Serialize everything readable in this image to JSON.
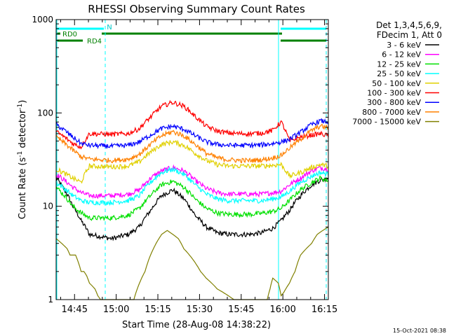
{
  "chart_data": {
    "type": "line",
    "title": "RHESSI Observing Summary Count Rates",
    "xlabel": "Start Time (28-Aug-08 14:38:22)",
    "ylabel_main": "Count Rate (s",
    "ylabel_sup1": "-1",
    "ylabel_mid": " detector",
    "ylabel_sup2": "-1",
    "ylabel_end": ")",
    "yscale": "log",
    "ylim": [
      1,
      1000
    ],
    "xlim_minutes": [
      0,
      98
    ],
    "x_unit": "minutes since 14:38:22",
    "x_ticks": [
      {
        "label": "14:45",
        "value": 6.63
      },
      {
        "label": "15:00",
        "value": 21.63
      },
      {
        "label": "15:15",
        "value": 36.63
      },
      {
        "label": "15:30",
        "value": 51.63
      },
      {
        "label": "15:45",
        "value": 66.63
      },
      {
        "label": "16:00",
        "value": 81.63
      },
      {
        "label": "16:15",
        "value": 96.63
      }
    ],
    "y_ticks": [
      {
        "label": "1",
        "value": 1
      },
      {
        "label": "10",
        "value": 10
      },
      {
        "label": "100",
        "value": 100
      },
      {
        "label": "1000",
        "value": 1000
      }
    ],
    "legend_header": [
      "Det 1,3,4,5,6,9,",
      "FDecim 1, Att 0"
    ],
    "legend_position": "right",
    "series": [
      {
        "name": "3 - 6 keV",
        "color": "#000000",
        "x": [
          0,
          6,
          9,
          12,
          20,
          26,
          30,
          34,
          38,
          42,
          46,
          50,
          54,
          58,
          62,
          66,
          70,
          74,
          78,
          81,
          84,
          88,
          92,
          95,
          98
        ],
        "y": [
          20,
          10,
          7,
          5,
          4.5,
          5,
          6,
          9,
          13,
          15,
          12,
          8,
          6,
          5.2,
          5,
          5,
          5,
          5.2,
          5.8,
          7,
          9,
          13,
          17,
          19,
          20
        ]
      },
      {
        "name": "6 - 12 keV",
        "color": "#ff00ff",
        "x": [
          0,
          6,
          9,
          12,
          20,
          26,
          30,
          34,
          38,
          42,
          46,
          50,
          54,
          58,
          62,
          66,
          70,
          74,
          78,
          81,
          84,
          88,
          92,
          95,
          98
        ],
        "y": [
          22,
          16,
          14,
          13,
          13,
          13.5,
          15,
          20,
          24,
          26,
          24,
          19,
          15.5,
          14,
          13.5,
          13.5,
          13.5,
          13.5,
          14,
          14.5,
          17,
          20,
          24,
          26,
          25
        ]
      },
      {
        "name": "12 - 25 keV",
        "color": "#00e000",
        "x": [
          0,
          6,
          9,
          12,
          20,
          26,
          30,
          34,
          38,
          42,
          46,
          50,
          54,
          58,
          62,
          66,
          70,
          74,
          78,
          81,
          84,
          88,
          92,
          95,
          98
        ],
        "y": [
          16,
          10,
          8.5,
          7.5,
          7.5,
          8,
          9.5,
          13,
          17,
          18.5,
          16,
          12,
          9.5,
          8.5,
          8.2,
          8.2,
          8.2,
          8.4,
          8.8,
          9.5,
          11.5,
          15,
          18,
          20,
          19
        ]
      },
      {
        "name": "25 - 50 keV",
        "color": "#00ffff",
        "x": [
          0,
          6,
          9,
          12,
          20,
          26,
          30,
          34,
          38,
          42,
          46,
          50,
          54,
          58,
          62,
          66,
          70,
          74,
          78,
          81,
          84,
          88,
          92,
          95,
          98
        ],
        "y": [
          18,
          13,
          11.5,
          11,
          11,
          11.5,
          13,
          18,
          23,
          25,
          22,
          17,
          13.5,
          12,
          11.5,
          11.5,
          11.5,
          11.5,
          12,
          12.5,
          14.5,
          18,
          21,
          23,
          22
        ]
      },
      {
        "name": "50 - 100 keV",
        "color": "#e0d000",
        "x": [
          0,
          6,
          9,
          12,
          20,
          26,
          30,
          34,
          38,
          42,
          46,
          50,
          54,
          58,
          62,
          66,
          70,
          74,
          78,
          81,
          84,
          88,
          92,
          95,
          98
        ],
        "y": [
          25,
          20,
          18,
          27,
          26.5,
          27,
          30,
          38,
          46,
          49,
          45,
          37,
          31,
          28,
          27,
          27,
          27,
          27,
          27.5,
          28,
          21,
          23,
          26,
          28,
          27
        ]
      },
      {
        "name": "100 - 300 keV",
        "color": "#ff0000",
        "x": [
          0,
          6,
          9,
          12,
          20,
          26,
          30,
          34,
          38,
          42,
          46,
          50,
          54,
          58,
          62,
          66,
          70,
          74,
          78,
          81,
          84,
          88,
          92,
          95,
          98
        ],
        "y": [
          63,
          47,
          43,
          60,
          59,
          60,
          68,
          90,
          118,
          130,
          118,
          92,
          72,
          64,
          61,
          60,
          60,
          61,
          65,
          80,
          50,
          55,
          58,
          60,
          57
        ]
      },
      {
        "name": "300 - 800 keV",
        "color": "#0000ff",
        "x": [
          0,
          6,
          9,
          12,
          20,
          26,
          30,
          34,
          38,
          42,
          46,
          50,
          54,
          58,
          62,
          66,
          70,
          74,
          78,
          81,
          84,
          88,
          92,
          95,
          98
        ],
        "y": [
          75,
          55,
          47,
          45,
          44,
          45,
          49,
          58,
          68,
          72,
          67,
          57,
          49,
          46,
          45,
          45,
          45,
          45.5,
          47,
          49,
          52,
          62,
          75,
          82,
          80
        ]
      },
      {
        "name": "800 - 7000 keV",
        "color": "#ff8000",
        "x": [
          0,
          6,
          9,
          12,
          20,
          26,
          30,
          34,
          38,
          42,
          46,
          50,
          54,
          58,
          62,
          66,
          70,
          74,
          78,
          81,
          84,
          88,
          92,
          95,
          98
        ],
        "y": [
          55,
          40,
          34,
          32,
          31,
          32,
          36,
          46,
          57,
          63,
          57,
          46,
          37,
          33,
          31.5,
          31,
          31,
          31.5,
          33,
          35,
          42,
          52,
          65,
          72,
          70
        ]
      },
      {
        "name": "7000 - 15000 keV",
        "color": "#808000",
        "x": [
          0,
          2,
          4,
          5,
          7,
          8,
          9,
          10,
          11,
          12,
          14,
          15,
          16,
          18,
          20,
          21,
          22,
          24,
          26,
          28,
          30,
          32,
          34,
          36,
          38,
          40,
          42,
          44,
          46,
          48,
          50,
          52,
          54,
          56,
          58,
          60,
          62,
          64,
          66,
          68,
          70,
          72,
          74,
          76,
          77,
          78,
          80,
          81,
          82,
          84,
          86,
          88,
          90,
          92,
          94,
          96,
          98
        ],
        "y": [
          4.5,
          4,
          3.5,
          3,
          3,
          2.5,
          2,
          2,
          1.8,
          1.5,
          1.3,
          1.1,
          1,
          1,
          1,
          1,
          1,
          1,
          1,
          1,
          1.5,
          2,
          3,
          4,
          5,
          5.5,
          5,
          4.5,
          3.5,
          3,
          2.5,
          2,
          1.7,
          1.5,
          1.3,
          1.2,
          1.1,
          1,
          1,
          1,
          1,
          1,
          1,
          1,
          1.3,
          1.7,
          1.5,
          1.1,
          1.2,
          1.5,
          2,
          3,
          3.5,
          4,
          5,
          5.5,
          6
        ]
      }
    ],
    "annotations": {
      "attenuator_text": "N",
      "rd0_label": "RD0",
      "rd4_label": "RD4",
      "timestamp": "15-Oct-2021 08:38"
    },
    "colors": {
      "axes": "#000000",
      "cyan_marker": "#00ffff",
      "rd_bars": "#008000",
      "text": "#000000"
    }
  }
}
